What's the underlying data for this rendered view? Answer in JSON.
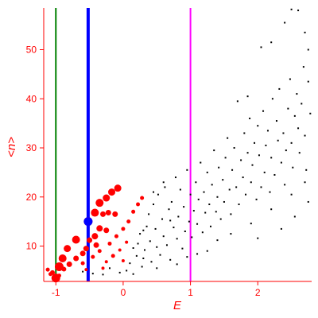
{
  "chart_data": {
    "type": "scatter",
    "xlabel": "E",
    "ylabel": "<n>",
    "xlim": [
      -1.18,
      2.8
    ],
    "ylim": [
      2.8,
      58.5
    ],
    "xticks": [
      -1,
      0,
      1,
      2
    ],
    "xtick_labels": [
      "-1",
      "0",
      "1",
      "2"
    ],
    "yticks": [
      10,
      20,
      30,
      40,
      50
    ],
    "ytick_labels": [
      "10",
      "20",
      "30",
      "40",
      "50"
    ],
    "grid": false,
    "colors": {
      "axes": "#ff0000",
      "ticks": "#ff0000",
      "small_points": "#000000",
      "large_points": "#ff0000",
      "highlight_point": "#0000ff"
    },
    "vertical_lines": [
      {
        "x": -1.0,
        "color": "#008000"
      },
      {
        "x": -0.52,
        "color": "#0000ff"
      },
      {
        "x": 1.0,
        "color": "#ff00ff"
      }
    ],
    "series": [
      {
        "color": "#000000",
        "marker": "small-square",
        "points": [
          [
            -0.6,
            4.8
          ],
          [
            -0.45,
            4.4
          ],
          [
            -0.3,
            4.2
          ],
          [
            -0.2,
            5.5
          ],
          [
            -0.05,
            4.6
          ],
          [
            0.05,
            5.0
          ],
          [
            0.1,
            6.5
          ],
          [
            0.15,
            4.3
          ],
          [
            0.2,
            8.0
          ],
          [
            0.22,
            10.5
          ],
          [
            0.25,
            12.5
          ],
          [
            0.28,
            5.8
          ],
          [
            0.3,
            7.5
          ],
          [
            0.32,
            9.2
          ],
          [
            0.35,
            14.0
          ],
          [
            0.38,
            16.5
          ],
          [
            0.4,
            11.0
          ],
          [
            0.42,
            6.8
          ],
          [
            0.45,
            18.5
          ],
          [
            0.48,
            13.5
          ],
          [
            0.5,
            9.8
          ],
          [
            0.52,
            20.5
          ],
          [
            0.55,
            8.2
          ],
          [
            0.58,
            15.5
          ],
          [
            0.6,
            12.0
          ],
          [
            0.62,
            22.0
          ],
          [
            0.65,
            10.2
          ],
          [
            0.68,
            17.5
          ],
          [
            0.7,
            7.2
          ],
          [
            0.72,
            19.0
          ],
          [
            0.75,
            13.8
          ],
          [
            0.78,
            24.0
          ],
          [
            0.8,
            11.5
          ],
          [
            0.82,
            16.0
          ],
          [
            0.85,
            21.5
          ],
          [
            0.88,
            9.5
          ],
          [
            0.9,
            18.0
          ],
          [
            0.92,
            13.0
          ],
          [
            0.95,
            25.5
          ],
          [
            0.98,
            15.0
          ],
          [
            1.0,
            20.5
          ],
          [
            1.02,
            11.8
          ],
          [
            1.05,
            17.2
          ],
          [
            1.08,
            23.0
          ],
          [
            1.1,
            14.5
          ],
          [
            1.12,
            19.5
          ],
          [
            1.15,
            27.0
          ],
          [
            1.18,
            12.8
          ],
          [
            1.2,
            21.0
          ],
          [
            1.22,
            16.8
          ],
          [
            1.25,
            25.0
          ],
          [
            1.28,
            18.5
          ],
          [
            1.3,
            14.0
          ],
          [
            1.32,
            22.5
          ],
          [
            1.35,
            29.5
          ],
          [
            1.38,
            17.0
          ],
          [
            1.4,
            20.0
          ],
          [
            1.42,
            26.0
          ],
          [
            1.45,
            15.5
          ],
          [
            1.48,
            23.5
          ],
          [
            1.5,
            19.0
          ],
          [
            1.52,
            28.0
          ],
          [
            1.55,
            32.0
          ],
          [
            1.58,
            21.5
          ],
          [
            1.6,
            16.5
          ],
          [
            1.62,
            25.5
          ],
          [
            1.65,
            30.0
          ],
          [
            1.68,
            22.0
          ],
          [
            1.7,
            39.5
          ],
          [
            1.72,
            18.5
          ],
          [
            1.75,
            27.5
          ],
          [
            1.78,
            24.0
          ],
          [
            1.8,
            33.0
          ],
          [
            1.82,
            20.5
          ],
          [
            1.85,
            29.0
          ],
          [
            1.88,
            36.0
          ],
          [
            1.9,
            23.0
          ],
          [
            1.92,
            26.5
          ],
          [
            1.95,
            31.0
          ],
          [
            1.98,
            19.5
          ],
          [
            2.0,
            34.5
          ],
          [
            2.02,
            28.5
          ],
          [
            2.05,
            22.0
          ],
          [
            2.08,
            37.5
          ],
          [
            2.1,
            25.0
          ],
          [
            2.12,
            30.5
          ],
          [
            2.15,
            33.5
          ],
          [
            2.18,
            21.0
          ],
          [
            2.2,
            28.0
          ],
          [
            2.22,
            40.0
          ],
          [
            2.25,
            24.5
          ],
          [
            2.28,
            35.5
          ],
          [
            2.3,
            31.5
          ],
          [
            2.32,
            42.0
          ],
          [
            2.35,
            27.0
          ],
          [
            2.38,
            33.0
          ],
          [
            2.4,
            22.5
          ],
          [
            2.42,
            29.5
          ],
          [
            2.45,
            38.0
          ],
          [
            2.48,
            44.0
          ],
          [
            2.5,
            31.0
          ],
          [
            2.52,
            26.0
          ],
          [
            2.55,
            36.5
          ],
          [
            2.58,
            41.0
          ],
          [
            2.6,
            34.0
          ],
          [
            2.62,
            29.0
          ],
          [
            2.65,
            39.0
          ],
          [
            2.68,
            46.5
          ],
          [
            2.7,
            32.5
          ],
          [
            2.72,
            25.5
          ],
          [
            2.75,
            43.5
          ],
          [
            2.78,
            37.0
          ],
          [
            2.2,
            51.5
          ],
          [
            2.4,
            55.5
          ],
          [
            2.5,
            58.2
          ],
          [
            2.6,
            58.0
          ],
          [
            2.7,
            53.5
          ],
          [
            2.75,
            50.0
          ],
          [
            2.05,
            50.5
          ],
          [
            1.85,
            40.5
          ],
          [
            0.45,
            21.0
          ],
          [
            0.6,
            23.0
          ],
          [
            0.3,
            13.2
          ],
          [
            0.7,
            15.2
          ],
          [
            1.25,
            9.0
          ],
          [
            1.4,
            11.2
          ],
          [
            0.15,
            9.6
          ],
          [
            0.95,
            7.8
          ],
          [
            1.6,
            12.5
          ],
          [
            1.9,
            14.6
          ],
          [
            2.2,
            17.5
          ],
          [
            2.5,
            20.5
          ],
          [
            2.7,
            23.0
          ],
          [
            0.5,
            5.5
          ],
          [
            0.8,
            6.3
          ],
          [
            1.1,
            8.4
          ],
          [
            2.0,
            11.6
          ],
          [
            2.35,
            13.5
          ],
          [
            2.55,
            16.0
          ],
          [
            2.75,
            19.0
          ]
        ]
      },
      {
        "color": "#ff0000",
        "marker": "large-circle",
        "points": [
          [
            -1.0,
            3.5
          ],
          [
            -0.95,
            5.8
          ],
          [
            -0.9,
            7.5
          ],
          [
            -0.83,
            9.5
          ],
          [
            -0.7,
            11.3
          ],
          [
            -0.52,
            15.0
          ],
          [
            -0.42,
            16.8
          ],
          [
            -0.35,
            18.8
          ],
          [
            -0.25,
            19.8
          ],
          [
            -0.17,
            21.0
          ],
          [
            -0.08,
            21.8
          ],
          [
            -0.3,
            16.5
          ],
          [
            -0.22,
            16.8
          ],
          [
            -0.12,
            16.5
          ],
          [
            -0.42,
            12.0
          ],
          [
            -0.35,
            13.6
          ],
          [
            -0.25,
            13.2
          ],
          [
            -0.5,
            11.2
          ],
          [
            -0.4,
            10.2
          ],
          [
            -0.55,
            9.5
          ],
          [
            -0.6,
            8.5
          ],
          [
            -0.7,
            7.5
          ],
          [
            -0.8,
            6.3
          ],
          [
            -0.88,
            5.3
          ],
          [
            -1.05,
            4.6
          ],
          [
            -1.12,
            5.2
          ],
          [
            -1.08,
            4.3
          ],
          [
            -0.95,
            4.0
          ],
          [
            -0.6,
            6.5
          ],
          [
            -0.45,
            7.8
          ],
          [
            -0.35,
            9.0
          ],
          [
            -0.2,
            10.5
          ],
          [
            -0.1,
            12.0
          ],
          [
            0.0,
            13.5
          ],
          [
            0.08,
            15.0
          ],
          [
            0.15,
            17.0
          ],
          [
            0.22,
            18.5
          ],
          [
            0.28,
            19.8
          ],
          [
            -0.15,
            8.0
          ],
          [
            -0.05,
            9.2
          ],
          [
            0.05,
            10.8
          ],
          [
            -0.25,
            6.8
          ],
          [
            -0.55,
            5.2
          ],
          [
            -0.3,
            5.5
          ],
          [
            0.0,
            7.0
          ]
        ],
        "sizes": [
          9,
          9,
          8,
          7,
          8,
          9,
          8,
          8,
          7,
          7,
          7,
          5,
          5,
          5,
          6,
          6,
          5,
          5,
          5,
          5,
          5,
          5,
          5,
          4,
          4,
          3,
          3,
          3,
          3,
          3,
          3,
          3,
          3,
          3,
          3,
          3,
          3,
          3,
          3,
          2,
          2,
          2,
          2,
          2,
          2
        ]
      },
      {
        "color": "#0000ff",
        "marker": "large-circle",
        "points": [
          [
            -0.52,
            15.0
          ]
        ],
        "sizes": [
          9
        ]
      }
    ]
  }
}
